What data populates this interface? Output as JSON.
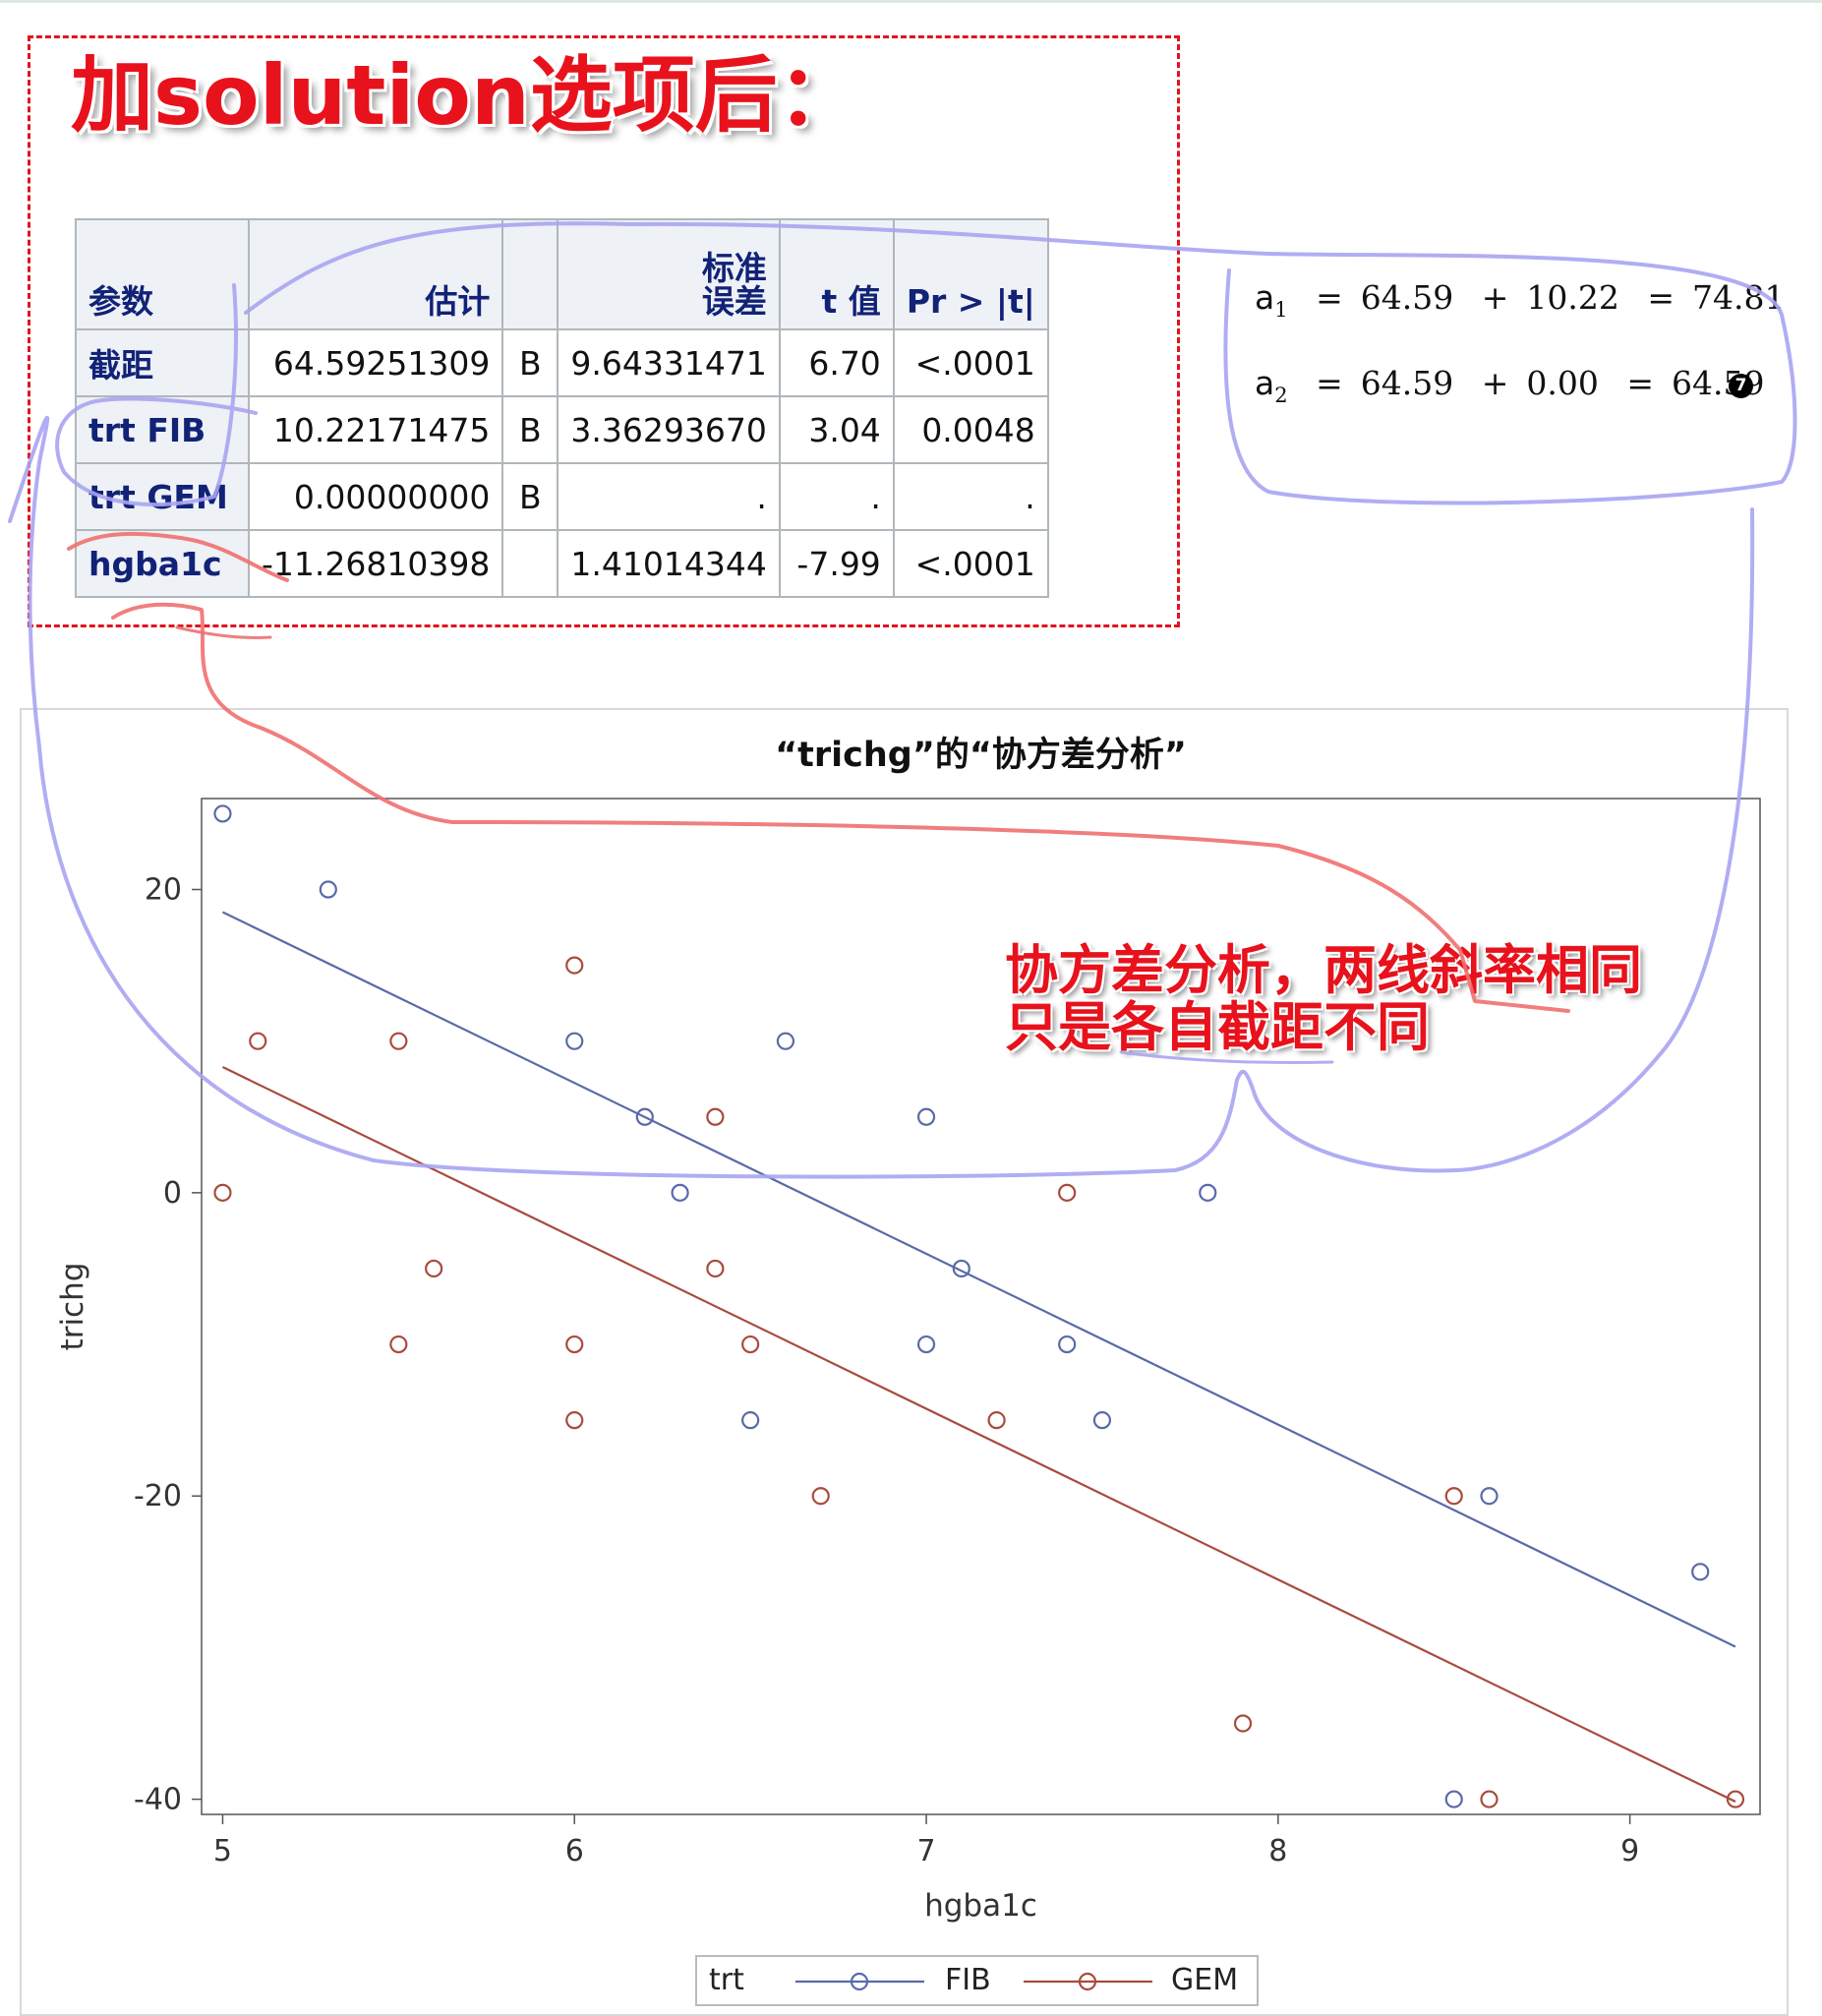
{
  "heading": "加solution选项后：",
  "param_table": {
    "headers": [
      "参数",
      "估计",
      "",
      "标准\n误差",
      "t 值",
      "Pr > |t|"
    ],
    "rows": [
      [
        "截距",
        "64.59251309",
        "B",
        "9.64331471",
        "6.70",
        "<.0001"
      ],
      [
        "trt FIB",
        "10.22171475",
        "B",
        "3.36293670",
        "3.04",
        "0.0048"
      ],
      [
        "trt GEM",
        "0.00000000",
        "B",
        ".",
        ".",
        "."
      ],
      [
        "hgba1c",
        "-11.26810398",
        "",
        "1.41014344",
        "-7.99",
        "<.0001"
      ]
    ]
  },
  "equations": {
    "eq1": {
      "symbol": "a",
      "sub": "1",
      "a": "64.59",
      "b": "10.22",
      "result": "74.81",
      "equals": "=",
      "plus": "+"
    },
    "eq2": {
      "symbol": "a",
      "sub": "2",
      "a": "64.59",
      "b": "0.00",
      "result": "64.59",
      "equals": "=",
      "plus": "+"
    },
    "marker": "7"
  },
  "annotation": {
    "line1": "协方差分析，两线斜率相同",
    "line2": "只是各自截距不同"
  },
  "legend": {
    "title": "trt"
  },
  "colors": {
    "fib": "#5a6aa8",
    "gem": "#a84b3e",
    "annotation_red": "#e8121c",
    "pen_blue": "#a9a4f2"
  },
  "chart_data": {
    "type": "scatter",
    "title": "“trichg”的“协方差分析”",
    "xlabel": "hgba1c",
    "ylabel": "trichg",
    "xlim": [
      4.94,
      9.37
    ],
    "ylim": [
      -41,
      26
    ],
    "xticks": [
      5,
      6,
      7,
      8,
      9
    ],
    "yticks": [
      20,
      0,
      -20,
      -40
    ],
    "legend_position": "bottom",
    "series": [
      {
        "name": "FIB",
        "points": [
          [
            5,
            25
          ],
          [
            5.3,
            20
          ],
          [
            6,
            10
          ],
          [
            6.2,
            5
          ],
          [
            6.3,
            0
          ],
          [
            6.5,
            -15
          ],
          [
            6.6,
            10
          ],
          [
            7,
            5
          ],
          [
            7,
            -10
          ],
          [
            7.1,
            -5
          ],
          [
            7.4,
            -10
          ],
          [
            7.5,
            -15
          ],
          [
            7.8,
            0
          ],
          [
            8.5,
            -40
          ],
          [
            8.6,
            -20
          ],
          [
            9.2,
            -25
          ]
        ],
        "fit_line": [
          [
            5,
            18.51
          ],
          [
            9.3,
            -29.94
          ]
        ]
      },
      {
        "name": "GEM",
        "points": [
          [
            5,
            0
          ],
          [
            5.1,
            10
          ],
          [
            5.5,
            10
          ],
          [
            5.5,
            -10
          ],
          [
            5.6,
            -5
          ],
          [
            6,
            15
          ],
          [
            6,
            -10
          ],
          [
            6,
            -15
          ],
          [
            6.4,
            5
          ],
          [
            6.4,
            -5
          ],
          [
            6.5,
            -10
          ],
          [
            6.7,
            -20
          ],
          [
            7.2,
            -15
          ],
          [
            7.4,
            0
          ],
          [
            7.9,
            -35
          ],
          [
            8.5,
            -20
          ],
          [
            8.6,
            -40
          ],
          [
            9.3,
            -40
          ]
        ],
        "fit_line": [
          [
            5,
            8.29
          ],
          [
            9.3,
            -40.16
          ]
        ]
      }
    ]
  }
}
